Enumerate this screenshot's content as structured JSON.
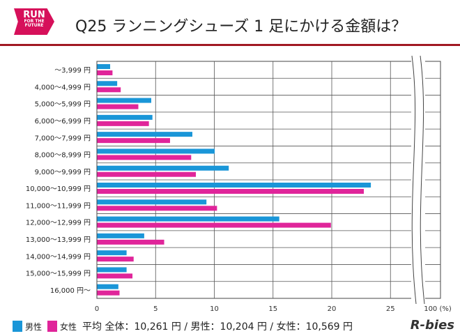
{
  "logo": {
    "line1": "RUN",
    "line2": "FOR THE",
    "line3": "FUTURE"
  },
  "title": "Q25 ランニングシューズ 1 足にかける金額は？",
  "brand": "R-bies",
  "colors": {
    "male": "#1a96d8",
    "female": "#e0259a",
    "accent": "#a11822"
  },
  "legend": {
    "male": "男性",
    "female": "女性",
    "average": "平均 全体：10,261 円 / 男性：10,204 円 / 女性：10,569 円"
  },
  "chart_data": {
    "type": "bar",
    "orientation": "horizontal",
    "categories": [
      "～3,999 円",
      "4,000～4,999 円",
      "5,000～5,999 円",
      "6,000～6,999 円",
      "7,000～7,999 円",
      "8,000～8,999 円",
      "9,000～9,999 円",
      "10,000～10,999 円",
      "11,000～11,999 円",
      "12,000～12,999 円",
      "13,000～13,999 円",
      "14,000～14,999 円",
      "15,000～15,999 円",
      "16,000 円～"
    ],
    "series": [
      {
        "name": "男性",
        "values": [
          1.1,
          1.7,
          4.6,
          4.7,
          8.1,
          10.0,
          11.2,
          23.3,
          9.3,
          15.5,
          4.0,
          2.5,
          2.5,
          1.8
        ]
      },
      {
        "name": "女性",
        "values": [
          1.3,
          2.0,
          3.5,
          4.4,
          6.2,
          8.0,
          8.4,
          22.7,
          10.2,
          19.9,
          5.7,
          3.1,
          3.0,
          1.9
        ]
      }
    ],
    "xticks": [
      "0",
      "5",
      "10",
      "15",
      "20",
      "25",
      "100 (%)"
    ],
    "xlim": [
      0,
      100
    ],
    "axis_break": "25 to 100",
    "grid": true,
    "legend_position": "bottom"
  }
}
